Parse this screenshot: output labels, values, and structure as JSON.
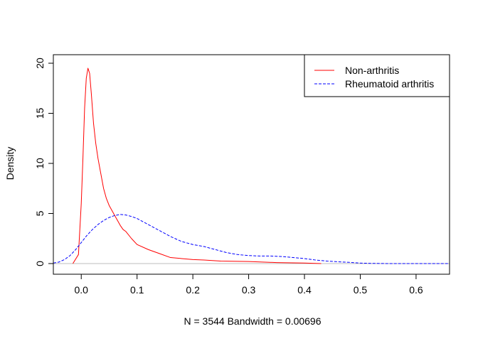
{
  "chart_data": {
    "type": "line",
    "title": "",
    "xlabel": "N = 3544   Bandwidth = 0.00696",
    "ylabel": "Density",
    "xlim": [
      -0.05,
      0.66
    ],
    "ylim": [
      0,
      20
    ],
    "x_ticks": [
      0.0,
      0.1,
      0.2,
      0.3,
      0.4,
      0.5,
      0.6
    ],
    "x_tick_labels": [
      "0.0",
      "0.1",
      "0.2",
      "0.3",
      "0.4",
      "0.5",
      "0.6"
    ],
    "y_ticks": [
      0,
      5,
      10,
      15,
      20
    ],
    "y_tick_labels": [
      "0",
      "5",
      "10",
      "15",
      "20"
    ],
    "baseline": 0,
    "baseline_color": "#bebebe",
    "grid": false,
    "legend": {
      "position": "top-right",
      "entries": [
        "Non-arthritis",
        "Rheumatoid arthritis"
      ]
    },
    "series": [
      {
        "name": "Non-arthritis",
        "color": "#ff0000",
        "dash": "solid",
        "x": [
          -0.015,
          -0.005,
          0.0,
          0.003,
          0.006,
          0.009,
          0.012,
          0.015,
          0.018,
          0.022,
          0.026,
          0.03,
          0.035,
          0.04,
          0.045,
          0.05,
          0.06,
          0.07,
          0.075,
          0.08,
          0.09,
          0.1,
          0.12,
          0.14,
          0.16,
          0.18,
          0.2,
          0.22,
          0.25,
          0.3,
          0.35,
          0.4,
          0.43
        ],
        "y": [
          0.0,
          0.9,
          6.0,
          10.5,
          15.5,
          18.5,
          19.5,
          19.0,
          17.0,
          14.0,
          12.0,
          10.5,
          9.0,
          7.5,
          6.5,
          5.8,
          4.8,
          3.8,
          3.4,
          3.2,
          2.5,
          1.9,
          1.4,
          1.0,
          0.6,
          0.5,
          0.4,
          0.35,
          0.25,
          0.2,
          0.1,
          0.05,
          0.0
        ]
      },
      {
        "name": "Rheumatoid arthritis",
        "color": "#0000ff",
        "dash": "dashed",
        "x": [
          -0.05,
          -0.04,
          -0.03,
          -0.02,
          -0.01,
          0.0,
          0.01,
          0.02,
          0.03,
          0.04,
          0.05,
          0.06,
          0.07,
          0.08,
          0.09,
          0.1,
          0.11,
          0.12,
          0.14,
          0.16,
          0.18,
          0.2,
          0.22,
          0.24,
          0.26,
          0.28,
          0.3,
          0.32,
          0.34,
          0.36,
          0.38,
          0.4,
          0.42,
          0.44,
          0.46,
          0.48,
          0.5,
          0.52,
          0.55,
          0.6,
          0.66
        ],
        "y": [
          0.05,
          0.15,
          0.4,
          0.8,
          1.4,
          2.1,
          2.8,
          3.4,
          3.9,
          4.3,
          4.6,
          4.8,
          4.9,
          4.85,
          4.7,
          4.5,
          4.2,
          3.9,
          3.3,
          2.7,
          2.2,
          1.9,
          1.7,
          1.4,
          1.1,
          0.9,
          0.8,
          0.75,
          0.75,
          0.7,
          0.6,
          0.5,
          0.35,
          0.25,
          0.18,
          0.12,
          0.05,
          0.02,
          0.0,
          0.0,
          0.0
        ]
      }
    ]
  }
}
